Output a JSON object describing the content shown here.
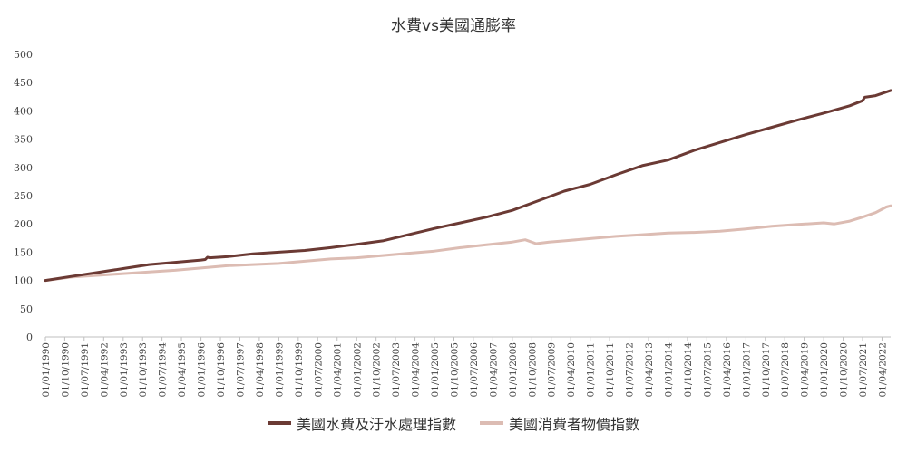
{
  "chart_data": {
    "type": "line",
    "title": "水費vs美國通膨率",
    "xlabel": "",
    "ylabel": "",
    "ylim": [
      0,
      500
    ],
    "yticks": [
      0,
      50,
      100,
      150,
      200,
      250,
      300,
      350,
      400,
      450,
      500
    ],
    "xlim": [
      "1990-01-01",
      "2022-08-01"
    ],
    "xtick_labels": [
      "01/01/1990",
      "01/10/1990",
      "01/07/1991",
      "01/04/1992",
      "01/01/1993",
      "01/10/1993",
      "01/07/1994",
      "01/04/1995",
      "01/01/1996",
      "01/10/1996",
      "01/07/1997",
      "01/04/1998",
      "01/01/1999",
      "01/10/1999",
      "01/07/2000",
      "01/04/2001",
      "01/01/2002",
      "01/10/2002",
      "01/07/2003",
      "01/04/2004",
      "01/01/2005",
      "01/10/2005",
      "01/07/2006",
      "01/04/2007",
      "01/01/2008",
      "01/10/2008",
      "01/07/2009",
      "01/04/2010",
      "01/01/2011",
      "01/10/2011",
      "01/07/2012",
      "01/04/2013",
      "01/01/2014",
      "01/10/2014",
      "01/07/2015",
      "01/04/2016",
      "01/01/2017",
      "01/10/2017",
      "01/07/2018",
      "01/04/2019",
      "01/01/2020",
      "01/10/2020",
      "01/07/2021",
      "01/04/2022"
    ],
    "grid": false,
    "legend_position": "bottom",
    "series": [
      {
        "name": "美國水費及汙水處理指數",
        "color": "#6b3a34",
        "x": [
          "1990-01-01",
          "1991-01-01",
          "1992-01-01",
          "1993-01-01",
          "1994-01-01",
          "1995-01-01",
          "1996-01-01",
          "1996-03-01",
          "1996-04-01",
          "1996-05-01",
          "1997-01-01",
          "1998-01-01",
          "1999-01-01",
          "2000-01-01",
          "2001-01-01",
          "2002-01-01",
          "2003-01-01",
          "2004-01-01",
          "2005-01-01",
          "2006-01-01",
          "2007-01-01",
          "2008-01-01",
          "2009-01-01",
          "2010-01-01",
          "2011-01-01",
          "2012-01-01",
          "2013-01-01",
          "2014-01-01",
          "2015-01-01",
          "2016-01-01",
          "2017-01-01",
          "2018-01-01",
          "2019-01-01",
          "2020-01-01",
          "2021-01-01",
          "2021-07-01",
          "2021-08-01",
          "2022-01-01",
          "2022-08-01"
        ],
        "values": [
          100,
          107,
          114,
          121,
          128,
          132,
          136,
          137,
          141,
          140,
          142,
          147,
          150,
          153,
          158,
          164,
          170,
          181,
          192,
          202,
          212,
          224,
          241,
          258,
          270,
          287,
          303,
          313,
          330,
          344,
          358,
          371,
          384,
          396,
          409,
          418,
          424,
          427,
          436
        ]
      },
      {
        "name": "美國消費者物價指數",
        "color": "#dcbcb3",
        "x": [
          "1990-01-01",
          "1991-01-01",
          "1992-01-01",
          "1993-01-01",
          "1994-01-01",
          "1995-01-01",
          "1996-01-01",
          "1997-01-01",
          "1998-01-01",
          "1999-01-01",
          "2000-01-01",
          "2001-01-01",
          "2002-01-01",
          "2003-01-01",
          "2004-01-01",
          "2005-01-01",
          "2006-01-01",
          "2007-01-01",
          "2008-01-01",
          "2008-07-01",
          "2008-12-01",
          "2009-06-01",
          "2010-01-01",
          "2011-01-01",
          "2012-01-01",
          "2013-01-01",
          "2014-01-01",
          "2015-01-01",
          "2016-01-01",
          "2017-01-01",
          "2018-01-01",
          "2019-01-01",
          "2020-01-01",
          "2020-06-01",
          "2021-01-01",
          "2021-07-01",
          "2022-01-01",
          "2022-06-01",
          "2022-08-01"
        ],
        "values": [
          100,
          106,
          109,
          112,
          115,
          118,
          122,
          126,
          128,
          130,
          134,
          138,
          140,
          144,
          148,
          152,
          158,
          163,
          168,
          172,
          165,
          168,
          170,
          174,
          178,
          181,
          184,
          185,
          187,
          191,
          196,
          199,
          202,
          200,
          205,
          212,
          220,
          230,
          232
        ]
      }
    ]
  }
}
